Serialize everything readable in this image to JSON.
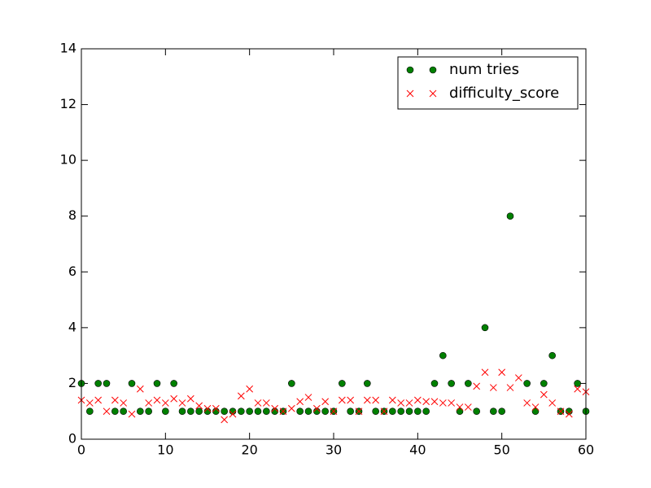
{
  "chart_data": {
    "type": "scatter",
    "x": [
      0,
      1,
      2,
      3,
      4,
      5,
      6,
      7,
      8,
      9,
      10,
      11,
      12,
      13,
      14,
      15,
      16,
      17,
      18,
      19,
      20,
      21,
      22,
      23,
      24,
      25,
      26,
      27,
      28,
      29,
      30,
      31,
      32,
      33,
      34,
      35,
      36,
      37,
      38,
      39,
      40,
      41,
      42,
      43,
      44,
      45,
      46,
      47,
      48,
      49,
      50,
      51,
      52,
      53,
      54,
      55,
      56,
      57,
      58,
      59,
      60
    ],
    "series": [
      {
        "name": "num tries",
        "color": "#008000",
        "marker": "o",
        "values": [
          2,
          1,
          2,
          2,
          1,
          1,
          2,
          1,
          1,
          2,
          1,
          2,
          1,
          1,
          1,
          1,
          1,
          1,
          1,
          1,
          1,
          1,
          1,
          1,
          1,
          2,
          1,
          1,
          1,
          1,
          1,
          2,
          1,
          1,
          2,
          1,
          1,
          1,
          1,
          1,
          1,
          1,
          2,
          3,
          2,
          1,
          2,
          1,
          4,
          1,
          1,
          8,
          null,
          2,
          1,
          2,
          3,
          1,
          1,
          2,
          1
        ]
      },
      {
        "name": "difficulty_score",
        "color": "#ff0000",
        "marker": "x",
        "values": [
          1.4,
          1.3,
          1.4,
          1.0,
          1.4,
          1.3,
          0.9,
          1.8,
          1.3,
          1.4,
          1.3,
          1.45,
          1.3,
          1.45,
          1.2,
          1.1,
          1.1,
          0.7,
          0.9,
          1.55,
          1.8,
          1.3,
          1.3,
          1.1,
          1.0,
          1.1,
          1.35,
          1.5,
          1.1,
          1.35,
          1.0,
          1.4,
          1.4,
          1.0,
          1.4,
          1.4,
          1.0,
          1.4,
          1.3,
          1.3,
          1.4,
          1.35,
          1.35,
          1.3,
          1.3,
          1.15,
          1.15,
          1.9,
          2.4,
          1.85,
          2.4,
          1.85,
          2.2,
          1.3,
          1.15,
          1.6,
          1.3,
          1.0,
          0.9,
          1.8,
          1.7
        ]
      }
    ],
    "xlim": [
      0,
      60
    ],
    "xticks": [
      0,
      10,
      20,
      30,
      40,
      50,
      60
    ],
    "ylim": [
      0,
      14
    ],
    "yticks": [
      0,
      2,
      4,
      6,
      8,
      10,
      12,
      14
    ],
    "legend": "upper right",
    "grid": false
  }
}
